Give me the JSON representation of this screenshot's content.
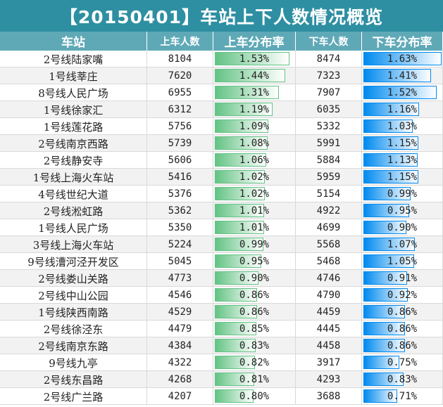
{
  "title": "【20150401】车站上下人数情况概览",
  "headers": [
    "车站",
    "上车人数",
    "上车分布率",
    "下车人数",
    "下车分布率"
  ],
  "colors": {
    "title_bg": "#2e8fa2",
    "header_bg": "#5fa9b7",
    "green_bar": "#63c384",
    "blue_bar": "#008aef"
  },
  "rows": [
    {
      "station": "2号线陆家嘴",
      "on": "8104",
      "on_rate": "1.53%",
      "off": "8474",
      "off_rate": "1.63%"
    },
    {
      "station": "1号线莘庄",
      "on": "7620",
      "on_rate": "1.44%",
      "off": "7323",
      "off_rate": "1.41%"
    },
    {
      "station": "8号线人民广场",
      "on": "6955",
      "on_rate": "1.31%",
      "off": "7907",
      "off_rate": "1.52%"
    },
    {
      "station": "1号线徐家汇",
      "on": "6312",
      "on_rate": "1.19%",
      "off": "6035",
      "off_rate": "1.16%"
    },
    {
      "station": "1号线莲花路",
      "on": "5756",
      "on_rate": "1.09%",
      "off": "5332",
      "off_rate": "1.03%"
    },
    {
      "station": "2号线南京西路",
      "on": "5739",
      "on_rate": "1.08%",
      "off": "5991",
      "off_rate": "1.15%"
    },
    {
      "station": "2号线静安寺",
      "on": "5606",
      "on_rate": "1.06%",
      "off": "5884",
      "off_rate": "1.13%"
    },
    {
      "station": "1号线上海火车站",
      "on": "5416",
      "on_rate": "1.02%",
      "off": "5959",
      "off_rate": "1.15%"
    },
    {
      "station": "4号线世纪大道",
      "on": "5376",
      "on_rate": "1.02%",
      "off": "5154",
      "off_rate": "0.99%"
    },
    {
      "station": "2号线淞虹路",
      "on": "5362",
      "on_rate": "1.01%",
      "off": "4922",
      "off_rate": "0.95%"
    },
    {
      "station": "1号线人民广场",
      "on": "5350",
      "on_rate": "1.01%",
      "off": "4699",
      "off_rate": "0.90%"
    },
    {
      "station": "3号线上海火车站",
      "on": "5224",
      "on_rate": "0.99%",
      "off": "5568",
      "off_rate": "1.07%"
    },
    {
      "station": "9号线漕河泾开发区",
      "on": "5045",
      "on_rate": "0.95%",
      "off": "5468",
      "off_rate": "1.05%"
    },
    {
      "station": "2号线娄山关路",
      "on": "4773",
      "on_rate": "0.90%",
      "off": "4746",
      "off_rate": "0.91%"
    },
    {
      "station": "2号线中山公园",
      "on": "4546",
      "on_rate": "0.86%",
      "off": "4790",
      "off_rate": "0.92%"
    },
    {
      "station": "1号线陕西南路",
      "on": "4529",
      "on_rate": "0.86%",
      "off": "4459",
      "off_rate": "0.86%"
    },
    {
      "station": "2号线徐泾东",
      "on": "4479",
      "on_rate": "0.85%",
      "off": "4445",
      "off_rate": "0.86%"
    },
    {
      "station": "2号线南京东路",
      "on": "4384",
      "on_rate": "0.83%",
      "off": "4458",
      "off_rate": "0.86%"
    },
    {
      "station": "9号线九亭",
      "on": "4322",
      "on_rate": "0.82%",
      "off": "3917",
      "off_rate": "0.75%"
    },
    {
      "station": "2号线东昌路",
      "on": "4268",
      "on_rate": "0.81%",
      "off": "4293",
      "off_rate": "0.83%"
    },
    {
      "station": "2号线广兰路",
      "on": "4207",
      "on_rate": "0.80%",
      "off": "3688",
      "off_rate": "0.71%"
    }
  ]
}
